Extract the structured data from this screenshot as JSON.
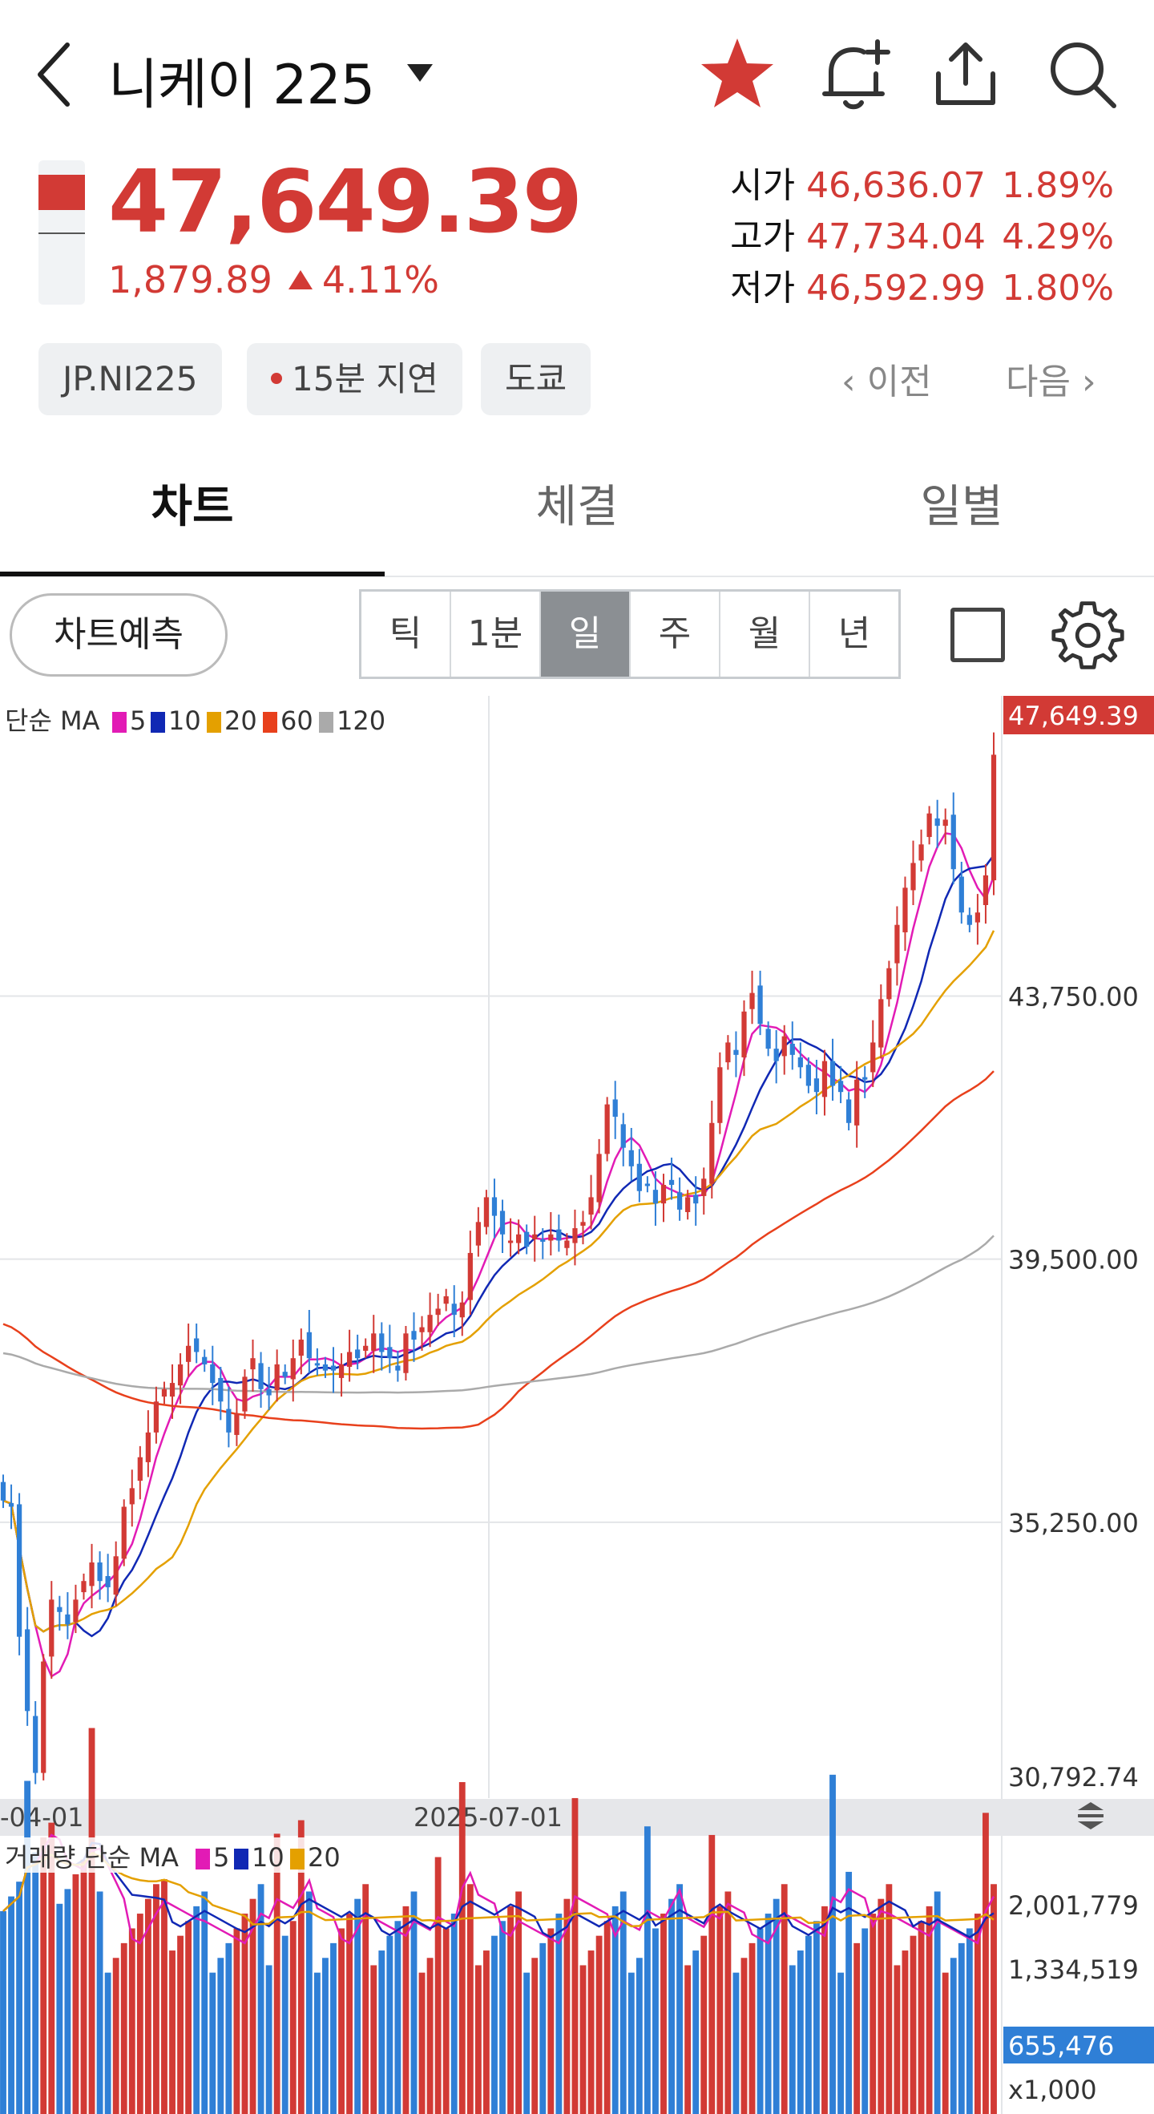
{
  "header": {
    "title": "니케이 225",
    "icons": [
      "back-icon",
      "dropdown-caret-icon",
      "star-icon",
      "bell-plus-icon",
      "share-icon",
      "search-icon"
    ],
    "star_color": "#d23a35"
  },
  "quote": {
    "price": "47,649.39",
    "change": "1,879.89",
    "change_pct": "4.11%",
    "open_label": "시가",
    "open_value": "46,636.07",
    "open_pct": "1.89%",
    "high_label": "고가",
    "high_value": "47,734.04",
    "high_pct": "4.29%",
    "low_label": "저가",
    "low_value": "46,592.99",
    "low_pct": "1.80%",
    "up_color": "#d23a35"
  },
  "chips": {
    "symbol": "JP.NI225",
    "delay": "15분 지연",
    "market": "도쿄"
  },
  "nav": {
    "prev": "이전",
    "next": "다음"
  },
  "tabs": [
    "차트",
    "체결",
    "일별"
  ],
  "toolbar": {
    "predict": "차트예측",
    "periods": [
      "틱",
      "1분",
      "일",
      "주",
      "월",
      "년"
    ],
    "selected": "일"
  },
  "legend": {
    "price_prefix": "단순 MA",
    "price_items": [
      {
        "label": "5",
        "color": "#e21bb5"
      },
      {
        "label": "10",
        "color": "#1028b4"
      },
      {
        "label": "20",
        "color": "#e4a000"
      },
      {
        "label": "60",
        "color": "#e8401c"
      },
      {
        "label": "120",
        "color": "#aaaaaa"
      }
    ],
    "volume_prefix": "거래량 단순 MA",
    "volume_items": [
      {
        "label": "5",
        "color": "#e21bb5"
      },
      {
        "label": "10",
        "color": "#1028b4"
      },
      {
        "label": "20",
        "color": "#e4a000"
      }
    ]
  },
  "chart_data": {
    "type": "candlestick",
    "price_axis": {
      "ticks": [
        "47,649.39",
        "43,750.00",
        "39,500.00",
        "35,250.00",
        "30,792.74"
      ],
      "ylim": [
        30792.74,
        47649.39
      ],
      "current_label": "47,649.39"
    },
    "x_labels": [
      "-04-01",
      "2025-07-01"
    ],
    "up_color": "#d23a35",
    "down_color": "#2f7fd6",
    "ma_colors": {
      "ma5": "#e21bb5",
      "ma10": "#1028b4",
      "ma20": "#e4a000",
      "ma60": "#e8401c",
      "ma120": "#aaaaaa"
    },
    "closes": [
      35600,
      35500,
      33400,
      32200,
      31200,
      33000,
      34000,
      33800,
      33600,
      34000,
      34300,
      34600,
      34300,
      34200,
      34700,
      35500,
      35800,
      36300,
      36700,
      37200,
      37400,
      37500,
      37800,
      38100,
      38000,
      37800,
      37500,
      37200,
      36700,
      37000,
      37600,
      37900,
      37400,
      37300,
      37800,
      37600,
      37900,
      38200,
      37900,
      37800,
      37700,
      37700,
      37800,
      38000,
      37900,
      38100,
      38300,
      38000,
      37900,
      37700,
      38300,
      38200,
      38400,
      38600,
      38700,
      38900,
      38600,
      38800,
      39600,
      40100,
      40500,
      40200,
      39900,
      39800,
      39900,
      39700,
      39900,
      39800,
      39900,
      39800,
      39800,
      40000,
      40100,
      40500,
      41200,
      42000,
      41800,
      41300,
      41000,
      40600,
      40700,
      40400,
      40700,
      40700,
      40300,
      40500,
      40400,
      40800,
      41700,
      42600,
      43000,
      42800,
      43500,
      43800,
      43300,
      42900,
      42700,
      43100,
      42800,
      42600,
      42300,
      42200,
      42700,
      42300,
      42200,
      41700,
      42400,
      42400,
      43000,
      43700,
      44200,
      44900,
      45500,
      45900,
      46200,
      46700,
      46500,
      46600,
      45800,
      45100,
      44900,
      45100,
      45700,
      47649
    ],
    "volume_axis": {
      "ticks": [
        "2,001,779",
        "1,334,519"
      ],
      "current_label": "655,476",
      "unit": "x1,000",
      "ylim": [
        0,
        2250000
      ]
    }
  }
}
